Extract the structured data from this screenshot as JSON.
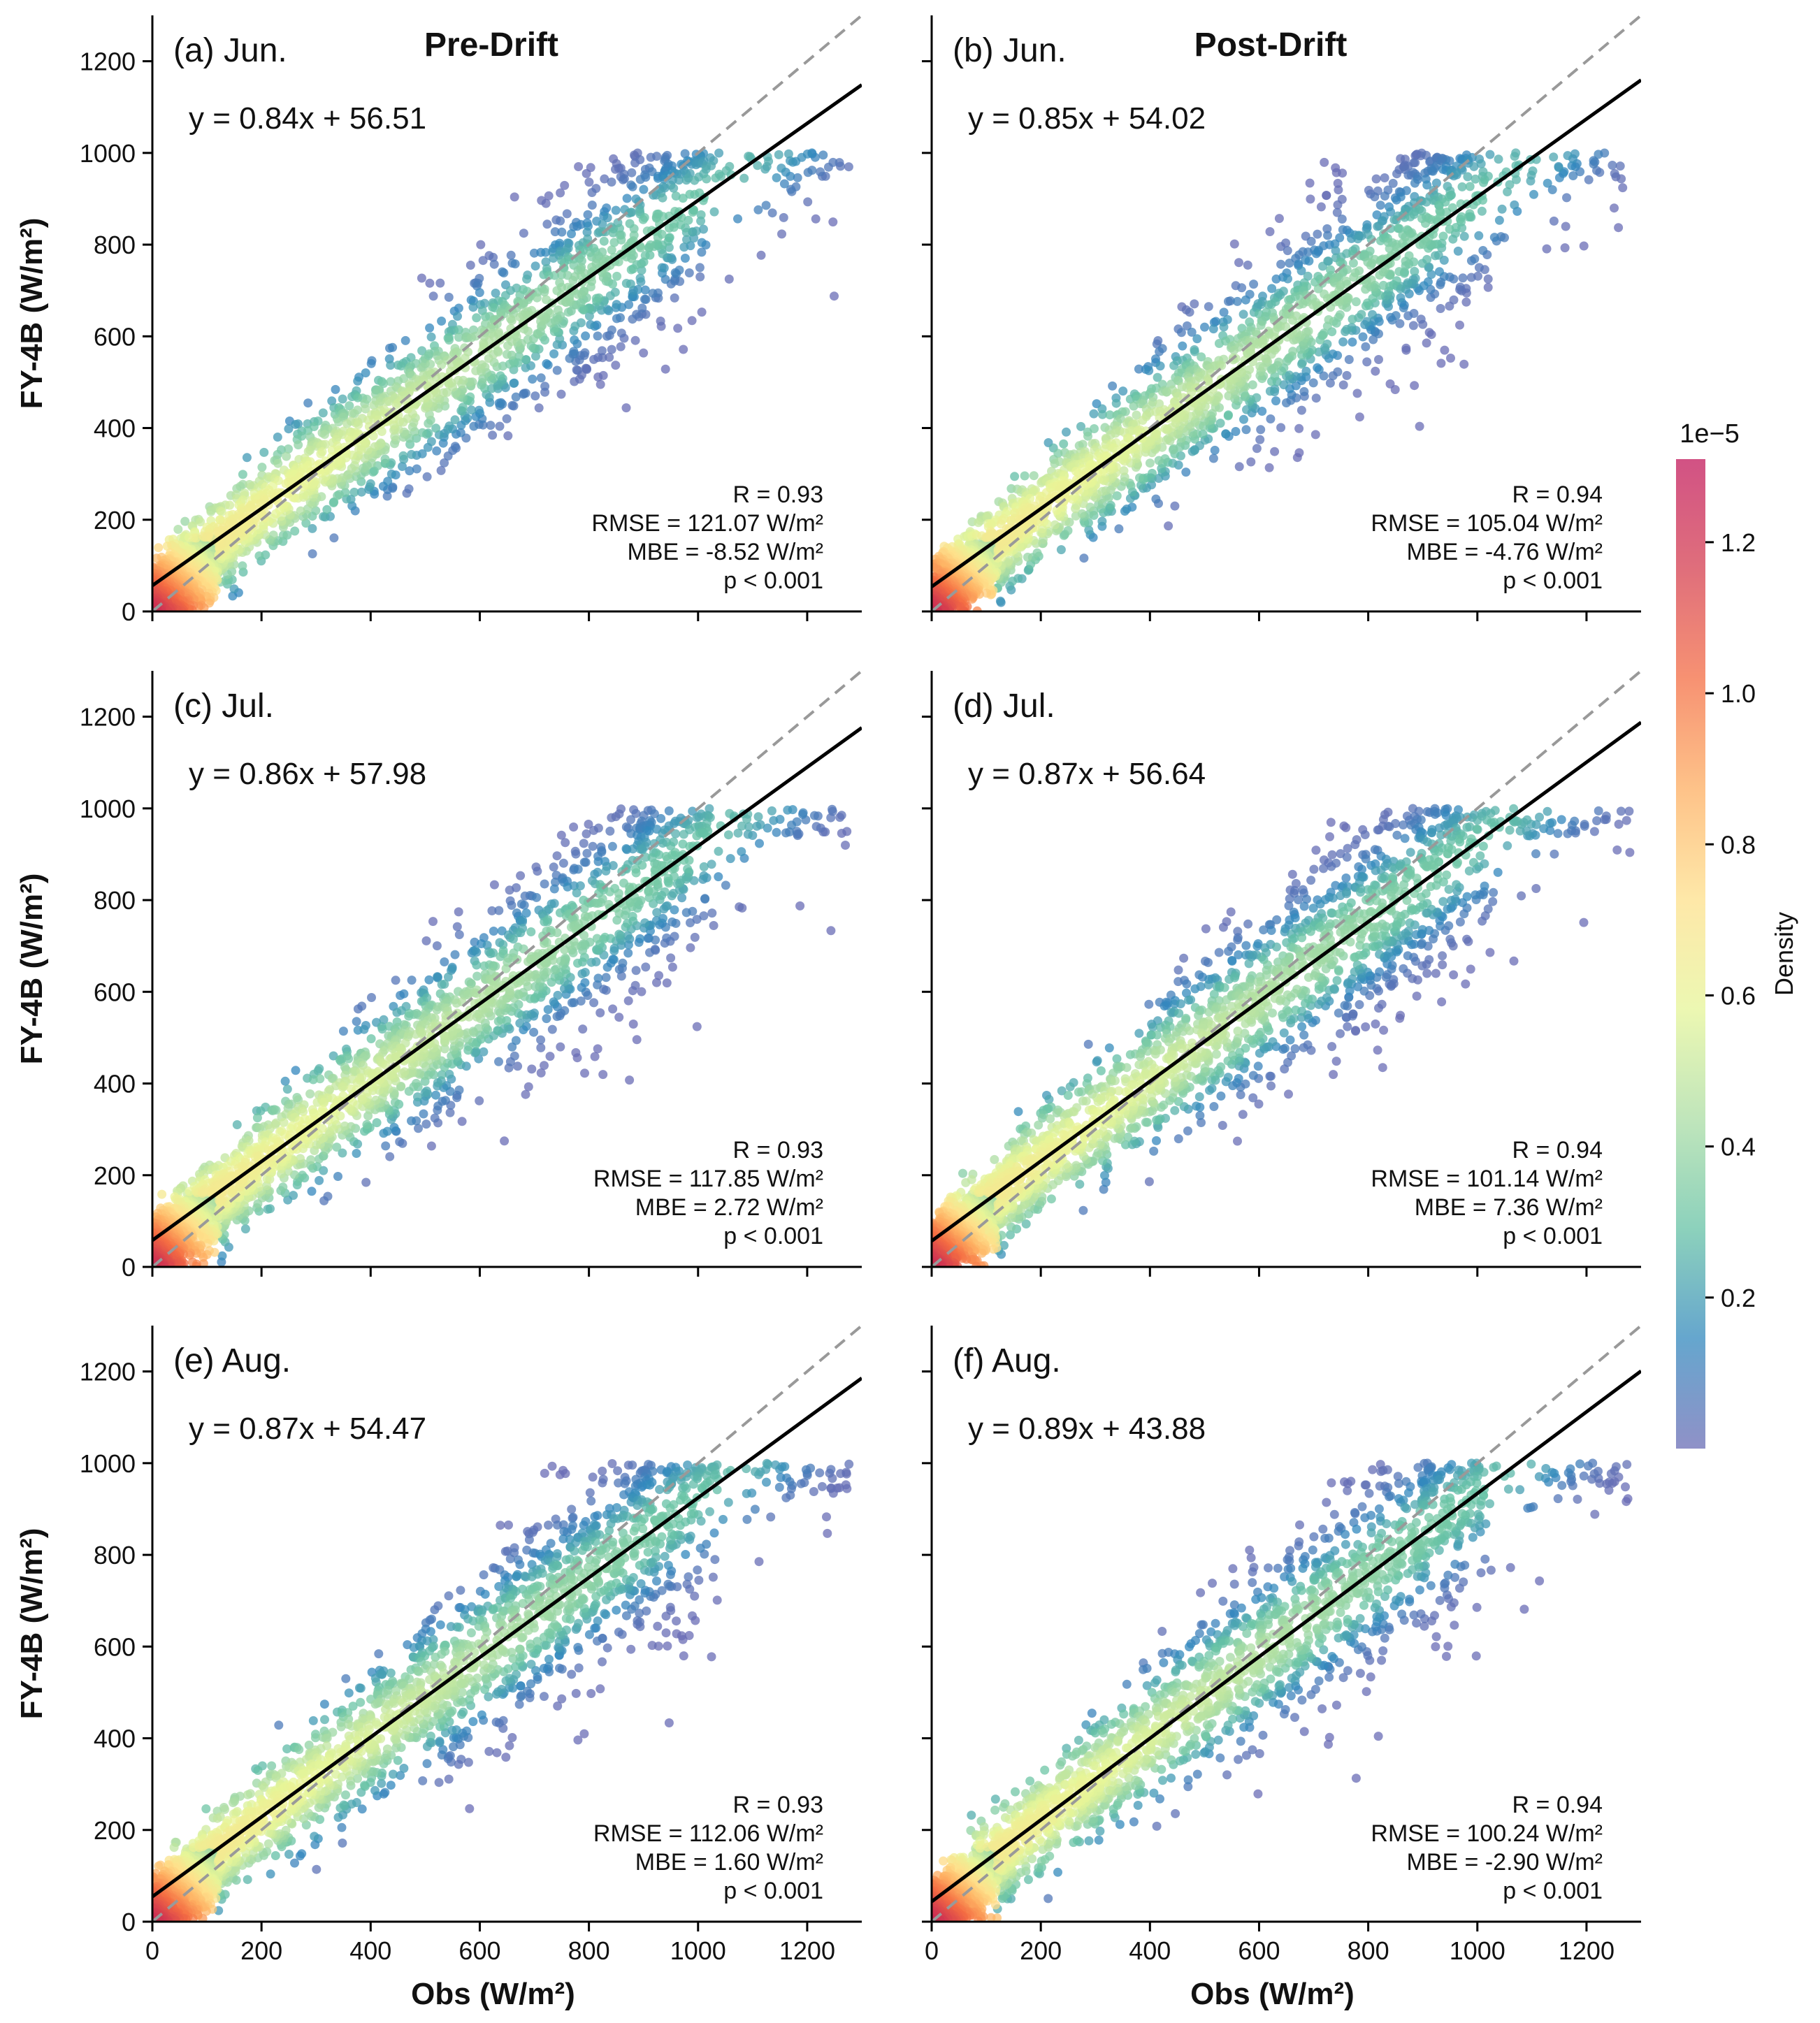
{
  "chart_data": [
    {
      "type": "scatter",
      "panel_label": "(a) Jun.",
      "column_title": "Pre-Drift",
      "equation": "y = 0.84x + 56.51",
      "fit": {
        "slope": 0.84,
        "intercept": 56.51
      },
      "stats": [
        "R = 0.93",
        "RMSE = 121.07 W/m²",
        "MBE = -8.52 W/m²",
        "p < 0.001"
      ],
      "ylabel": "FY-4B (W/m²)",
      "xlabel": "",
      "xlim": [
        0,
        1300
      ],
      "ylim": [
        0,
        1300
      ],
      "xticks": [
        0,
        200,
        400,
        600,
        800,
        1000,
        1200
      ],
      "yticks": [
        0,
        200,
        400,
        600,
        800,
        1000,
        1200
      ],
      "show_xticklabels": false,
      "show_yticklabels": true,
      "reference_line": "1:1 dashed"
    },
    {
      "type": "scatter",
      "panel_label": "(b) Jun.",
      "column_title": "Post-Drift",
      "equation": "y = 0.85x + 54.02",
      "fit": {
        "slope": 0.85,
        "intercept": 54.02
      },
      "stats": [
        "R = 0.94",
        "RMSE = 105.04 W/m²",
        "MBE = -4.76 W/m²",
        "p < 0.001"
      ],
      "ylabel": "",
      "xlabel": "",
      "xlim": [
        0,
        1300
      ],
      "ylim": [
        0,
        1300
      ],
      "xticks": [
        0,
        200,
        400,
        600,
        800,
        1000,
        1200
      ],
      "yticks": [
        0,
        200,
        400,
        600,
        800,
        1000,
        1200
      ],
      "show_xticklabels": false,
      "show_yticklabels": false,
      "reference_line": "1:1 dashed"
    },
    {
      "type": "scatter",
      "panel_label": "(c) Jul.",
      "column_title": "",
      "equation": "y = 0.86x + 57.98",
      "fit": {
        "slope": 0.86,
        "intercept": 57.98
      },
      "stats": [
        "R = 0.93",
        "RMSE = 117.85 W/m²",
        "MBE = 2.72 W/m²",
        "p < 0.001"
      ],
      "ylabel": "FY-4B (W/m²)",
      "xlabel": "",
      "xlim": [
        0,
        1300
      ],
      "ylim": [
        0,
        1300
      ],
      "xticks": [
        0,
        200,
        400,
        600,
        800,
        1000,
        1200
      ],
      "yticks": [
        0,
        200,
        400,
        600,
        800,
        1000,
        1200
      ],
      "show_xticklabels": false,
      "show_yticklabels": true,
      "reference_line": "1:1 dashed"
    },
    {
      "type": "scatter",
      "panel_label": "(d) Jul.",
      "column_title": "",
      "equation": "y = 0.87x + 56.64",
      "fit": {
        "slope": 0.87,
        "intercept": 56.64
      },
      "stats": [
        "R = 0.94",
        "RMSE = 101.14 W/m²",
        "MBE = 7.36 W/m²",
        "p < 0.001"
      ],
      "ylabel": "",
      "xlabel": "",
      "xlim": [
        0,
        1300
      ],
      "ylim": [
        0,
        1300
      ],
      "xticks": [
        0,
        200,
        400,
        600,
        800,
        1000,
        1200
      ],
      "yticks": [
        0,
        200,
        400,
        600,
        800,
        1000,
        1200
      ],
      "show_xticklabels": false,
      "show_yticklabels": false,
      "reference_line": "1:1 dashed"
    },
    {
      "type": "scatter",
      "panel_label": "(e) Aug.",
      "column_title": "",
      "equation": "y = 0.87x + 54.47",
      "fit": {
        "slope": 0.87,
        "intercept": 54.47
      },
      "stats": [
        "R = 0.93",
        "RMSE = 112.06 W/m²",
        "MBE = 1.60 W/m²",
        "p < 0.001"
      ],
      "ylabel": "FY-4B (W/m²)",
      "xlabel": "Obs (W/m²)",
      "xlim": [
        0,
        1300
      ],
      "ylim": [
        0,
        1300
      ],
      "xticks": [
        0,
        200,
        400,
        600,
        800,
        1000,
        1200
      ],
      "yticks": [
        0,
        200,
        400,
        600,
        800,
        1000,
        1200
      ],
      "show_xticklabels": true,
      "show_yticklabels": true,
      "reference_line": "1:1 dashed"
    },
    {
      "type": "scatter",
      "panel_label": "(f) Aug.",
      "column_title": "",
      "equation": "y = 0.89x + 43.88",
      "fit": {
        "slope": 0.89,
        "intercept": 43.88
      },
      "stats": [
        "R = 0.94",
        "RMSE = 100.24 W/m²",
        "MBE = -2.90 W/m²",
        "p < 0.001"
      ],
      "ylabel": "",
      "xlabel": "Obs (W/m²)",
      "xlim": [
        0,
        1300
      ],
      "ylim": [
        0,
        1300
      ],
      "xticks": [
        0,
        200,
        400,
        600,
        800,
        1000,
        1200
      ],
      "yticks": [
        0,
        200,
        400,
        600,
        800,
        1000,
        1200
      ],
      "show_xticklabels": true,
      "show_yticklabels": false,
      "reference_line": "1:1 dashed"
    }
  ],
  "colorbar": {
    "label": "Density",
    "exponent": "1e−5",
    "ticks": [
      0.2,
      0.4,
      0.6,
      0.8,
      1.0,
      1.2
    ],
    "tick_labels": [
      "0.2",
      "0.4",
      "0.6",
      "0.8",
      "1.0",
      "1.2"
    ],
    "range": [
      0.0,
      1.31
    ],
    "colormap": "Spectral_r",
    "colors": [
      "#6a6cb5",
      "#3288bd",
      "#66c2a5",
      "#abdda4",
      "#e6f598",
      "#fee08b",
      "#fdae61",
      "#f46d43",
      "#d53e4f",
      "#c2185b"
    ]
  },
  "styles": {
    "fit_line_color": "#000000",
    "reference_line_color": "#999999"
  }
}
